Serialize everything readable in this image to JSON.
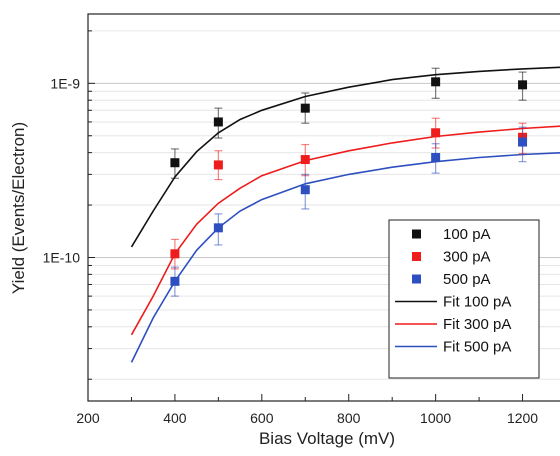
{
  "chart_data": {
    "type": "scatter",
    "xlabel": "Bias Voltage (mV)",
    "ylabel": "Yield (Events/Electron)",
    "xlim": [
      200,
      1300
    ],
    "ylim": [
      1.5e-11,
      2.5e-09
    ],
    "yscale": "log",
    "grid": "horizontal",
    "legend_position": "bottom-right",
    "x_ticks": [
      {
        "value": 200,
        "label": "200"
      },
      {
        "value": 400,
        "label": "400"
      },
      {
        "value": 600,
        "label": "600"
      },
      {
        "value": 800,
        "label": "800"
      },
      {
        "value": 1000,
        "label": "1000"
      },
      {
        "value": 1200,
        "label": "1200"
      }
    ],
    "y_ticks": [
      {
        "value": 1e-10,
        "label": "1E-10"
      },
      {
        "value": 1e-09,
        "label": "1E-9"
      }
    ],
    "series": [
      {
        "name": "100 pA",
        "kind": "points",
        "color": "#111111",
        "points": [
          {
            "x": 400,
            "y": 3.5e-10,
            "err_low": 2.85e-10,
            "err_high": 4.2e-10
          },
          {
            "x": 500,
            "y": 6e-10,
            "err_low": 4.85e-10,
            "err_high": 7.2e-10
          },
          {
            "x": 700,
            "y": 7.2e-10,
            "err_low": 5.9e-10,
            "err_high": 8.8e-10
          },
          {
            "x": 1000,
            "y": 1.02e-09,
            "err_low": 8.2e-10,
            "err_high": 1.22e-09
          },
          {
            "x": 1200,
            "y": 9.8e-10,
            "err_low": 8e-10,
            "err_high": 1.16e-09
          }
        ]
      },
      {
        "name": "300 pA",
        "kind": "points",
        "color": "#ee1c1c",
        "points": [
          {
            "x": 400,
            "y": 1.05e-10,
            "err_low": 8.6e-11,
            "err_high": 1.27e-10
          },
          {
            "x": 500,
            "y": 3.4e-10,
            "err_low": 2.8e-10,
            "err_high": 4.1e-10
          },
          {
            "x": 700,
            "y": 3.65e-10,
            "err_low": 2.95e-10,
            "err_high": 4.45e-10
          },
          {
            "x": 1000,
            "y": 5.2e-10,
            "err_low": 4.25e-10,
            "err_high": 6.3e-10
          },
          {
            "x": 1200,
            "y": 4.9e-10,
            "err_low": 3.95e-10,
            "err_high": 5.9e-10
          }
        ]
      },
      {
        "name": "500 pA",
        "kind": "points",
        "color": "#2e4fc0",
        "points": [
          {
            "x": 400,
            "y": 7.3e-11,
            "err_low": 6e-11,
            "err_high": 8.8e-11
          },
          {
            "x": 500,
            "y": 1.48e-10,
            "err_low": 1.18e-10,
            "err_high": 1.78e-10
          },
          {
            "x": 700,
            "y": 2.45e-10,
            "err_low": 1.9e-10,
            "err_high": 3e-10
          },
          {
            "x": 1000,
            "y": 3.75e-10,
            "err_low": 3.05e-10,
            "err_high": 4.5e-10
          },
          {
            "x": 1200,
            "y": 4.6e-10,
            "err_low": 3.55e-10,
            "err_high": 5.6e-10
          }
        ]
      },
      {
        "name": "Fit 100 pA",
        "kind": "line",
        "color": "#111111",
        "x": [
          300,
          350,
          400,
          450,
          500,
          550,
          600,
          700,
          800,
          900,
          1000,
          1100,
          1200,
          1300
        ],
        "y": [
          1.15e-10,
          1.85e-10,
          2.9e-10,
          4.05e-10,
          5.2e-10,
          6.2e-10,
          7e-10,
          8.4e-10,
          9.5e-10,
          1.05e-09,
          1.12e-09,
          1.17e-09,
          1.21e-09,
          1.24e-09
        ]
      },
      {
        "name": "Fit 300 pA",
        "kind": "line",
        "color": "#ee1c1c",
        "x": [
          300,
          350,
          400,
          450,
          500,
          550,
          600,
          700,
          800,
          900,
          1000,
          1100,
          1200,
          1300
        ],
        "y": [
          3.6e-11,
          6e-11,
          1.05e-10,
          1.55e-10,
          2.05e-10,
          2.5e-10,
          2.95e-10,
          3.6e-10,
          4.1e-10,
          4.55e-10,
          4.95e-10,
          5.25e-10,
          5.5e-10,
          5.7e-10
        ]
      },
      {
        "name": "Fit 500 pA",
        "kind": "line",
        "color": "#2e4fc0",
        "x": [
          300,
          350,
          400,
          450,
          500,
          550,
          600,
          700,
          800,
          900,
          1000,
          1100,
          1200,
          1300
        ],
        "y": [
          2.5e-11,
          4.5e-11,
          7.3e-11,
          1.1e-10,
          1.48e-10,
          1.85e-10,
          2.15e-10,
          2.65e-10,
          3e-10,
          3.3e-10,
          3.55e-10,
          3.75e-10,
          3.9e-10,
          4e-10
        ]
      }
    ]
  }
}
